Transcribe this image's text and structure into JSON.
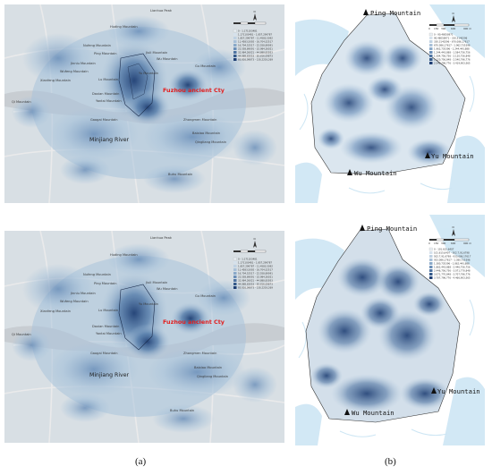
{
  "captions": {
    "a": "(a)",
    "b": "(b)"
  },
  "left_map": {
    "place_labels": {
      "lianhua_peak": "Lianhua Peak",
      "huding_mountain": "Huding Mountain",
      "nufeng_mountain": "Nufeng Mountain",
      "ping_mountain": "Ping Mountain",
      "jinniu_mountain": "Jinniu Mountain",
      "wufeng_mountain": "Wufeng Mountain",
      "lu_mountain": "Lu Mountain",
      "xianfeng_mountain": "Xianfeng Mountain",
      "jiuli_mountain": "Jiuli Mountain",
      "wu_mountain": "Wu Mountain",
      "yu_mountain": "Yu Mountain",
      "gu_mountain": "Gu Mountain",
      "qi_mountain": "Qi Mountain",
      "daxian_mountain": "Daxian Mountain",
      "yantai_mountain": "Yantai Mountain",
      "gaogai_mountain": "Gaogai Mountain",
      "zhongmen_mountain": "Zhongmen Mountain",
      "baixiao_mountain": "Baixiao Mountain",
      "qingliang_mountain": "Qingliang Mountain",
      "minjiang_river": "Minjiang River",
      "fuzhou_ancient_city": "Fuzhou ancient Cty",
      "buhu_mountain": "Buhu Mountain"
    },
    "legend": [
      "0 - 1.171103481",
      "1.171103481 - 1.857,299787",
      "1.857,299787 - 11.4583,5092",
      "11.4583,5092 - 16.704,52517",
      "16.704,52517 - 22.558,89091",
      "22.558,89091 - 32.984,26021",
      "32.984,26021 - 44.888,83053",
      "44.888,83053 - 83.816,09873",
      "83.816,09873 - 130,2203,269"
    ]
  },
  "right_map": {
    "labels": {
      "ping_mountain": "Ping Mountain",
      "yu_mountain": "Yu Mountain",
      "wu_mountain": "Wu Mountain"
    },
    "scale_ticks": [
      "0",
      "150",
      "300",
      "600",
      "900 m"
    ],
    "legend_top": [
      "0 - 90.48058971",
      "90.48058971 - 330.3140296",
      "330.3140296 - 670.086,17617",
      "670.086,17617 - 1.962,735396",
      "1.962,735396 - 1.244,443,888",
      "1.244,443,888 - 1.584,756,756",
      "1.584,756,756 - 2.120,756,848",
      "2.120,756,848 - 2.540,796,776",
      "2.540,796,776 - 3.419,903,565"
    ],
    "legend_bottom": [
      "0 - 101.615,6407",
      "101.615,6407 - 502.7,91,6798",
      "502.7,91,6798 - 933.086,17617",
      "933.086,17617 - 1.380,735396",
      "1.380,735396 - 1.862,443,888",
      "1.862,443,888 - 2.446,756,756",
      "2.446,756,756 - 3.071,770,848",
      "3.071,770,848 - 3.707,796,776",
      "3.707,796,776 - 4.466,903,565"
    ]
  },
  "colors": {
    "background": "#d8dfe4",
    "road": "#ececec",
    "river": "#c8cdd2",
    "density_low": "#a9c3da",
    "density_high": "#1f3f74",
    "focus_label": "#e21f1f"
  }
}
